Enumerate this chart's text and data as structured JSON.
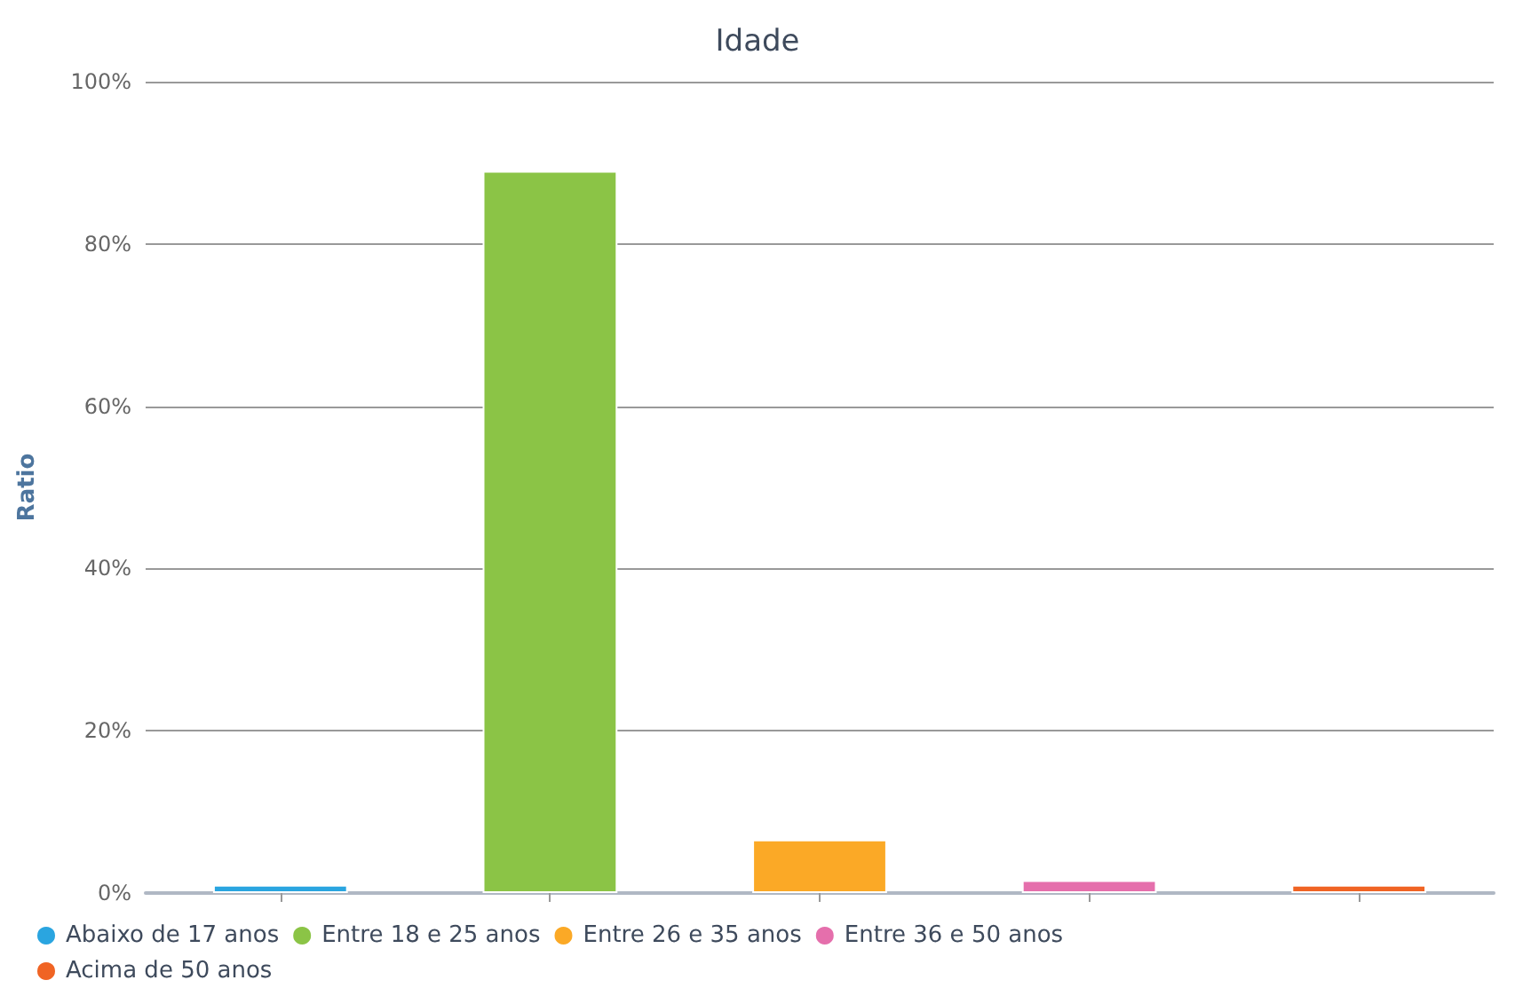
{
  "chart_data": {
    "type": "bar",
    "title": "Idade",
    "ylabel": "Ratio",
    "categories": [
      null,
      null,
      null,
      null,
      null
    ],
    "series": [
      {
        "name": "Abaixo de 17 anos",
        "color": "#2aa5e0",
        "values": [
          1.0,
          null,
          null,
          null,
          null
        ]
      },
      {
        "name": "Entre 18 e 25 anos",
        "color": "#8bc446",
        "values": [
          null,
          89,
          null,
          null,
          null
        ]
      },
      {
        "name": "Entre 26 e 35 anos",
        "color": "#fba926",
        "values": [
          null,
          null,
          6.6,
          null,
          null
        ]
      },
      {
        "name": "Entre 36 e 50 anos",
        "color": "#e56fac",
        "values": [
          null,
          null,
          null,
          1.6,
          null
        ]
      },
      {
        "name": "Acima de 50 anos",
        "color": "#f06424",
        "values": [
          null,
          null,
          null,
          null,
          1.0
        ]
      }
    ],
    "ylim": [
      0,
      100
    ],
    "yticks": [
      {
        "value": 0,
        "label": "0%"
      },
      {
        "value": 20,
        "label": "20%"
      },
      {
        "value": 40,
        "label": "40%"
      },
      {
        "value": 60,
        "label": "60%"
      },
      {
        "value": 80,
        "label": "80%"
      },
      {
        "value": 100,
        "label": "100%"
      }
    ],
    "grid": "y",
    "legend": "bottom left"
  }
}
